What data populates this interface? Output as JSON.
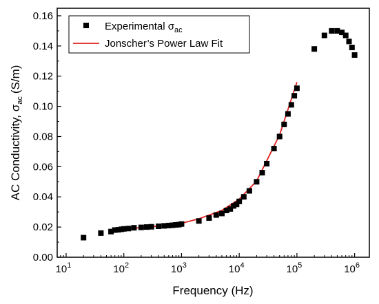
{
  "chart_data": {
    "type": "scatter",
    "xlabel": "Frequency (Hz)",
    "ylabel_main": "AC Conductivity, σ",
    "ylabel_sub": "ac",
    "ylabel_unit": "(S/m)",
    "xscale": "log",
    "xlim": [
      7,
      1800000
    ],
    "ylim": [
      0,
      0.165
    ],
    "grid": false,
    "legend_position": "top-left",
    "x_ticks": [
      {
        "value": 10,
        "base": "10",
        "exp": "1"
      },
      {
        "value": 100,
        "base": "10",
        "exp": "2"
      },
      {
        "value": 1000,
        "base": "10",
        "exp": "3"
      },
      {
        "value": 10000,
        "base": "10",
        "exp": "4"
      },
      {
        "value": 100000,
        "base": "10",
        "exp": "5"
      },
      {
        "value": 1000000,
        "base": "10",
        "exp": "6"
      }
    ],
    "y_ticks": [
      "0.00",
      "0.02",
      "0.04",
      "0.06",
      "0.08",
      "0.10",
      "0.12",
      "0.14",
      "0.16"
    ],
    "series": [
      {
        "name_main": "Experimental σ",
        "name_sub": "ac",
        "kind": "markers",
        "marker": "square",
        "color": "#000000",
        "x": [
          20,
          40,
          60,
          70,
          80,
          90,
          100,
          120,
          150,
          200,
          250,
          300,
          400,
          500,
          600,
          700,
          800,
          900,
          1000,
          2000,
          3000,
          4000,
          5000,
          6000,
          7000,
          8000,
          9000,
          10000,
          12000,
          15000,
          20000,
          25000,
          30000,
          40000,
          50000,
          60000,
          70000,
          80000,
          90000,
          100000,
          200000,
          300000,
          400000,
          500000,
          600000,
          700000,
          800000,
          900000,
          1000000
        ],
        "y": [
          0.013,
          0.016,
          0.017,
          0.018,
          0.0182,
          0.0185,
          0.0188,
          0.019,
          0.0195,
          0.0198,
          0.02,
          0.0202,
          0.0205,
          0.0208,
          0.021,
          0.0212,
          0.0214,
          0.0216,
          0.022,
          0.024,
          0.026,
          0.028,
          0.029,
          0.031,
          0.032,
          0.034,
          0.035,
          0.037,
          0.04,
          0.044,
          0.05,
          0.056,
          0.062,
          0.072,
          0.08,
          0.088,
          0.095,
          0.101,
          0.107,
          0.112,
          0.138,
          0.147,
          0.15,
          0.15,
          0.149,
          0.147,
          0.143,
          0.139,
          0.134
        ]
      },
      {
        "name": "Jonscher’s Power Law Fit",
        "kind": "line",
        "color": "#e02020",
        "x": [
          60,
          100,
          200,
          500,
          1000,
          2000,
          5000,
          10000,
          20000,
          50000,
          100000
        ],
        "y": [
          0.0178,
          0.0185,
          0.0197,
          0.0209,
          0.0225,
          0.0255,
          0.031,
          0.0385,
          0.0505,
          0.081,
          0.116
        ]
      }
    ]
  }
}
